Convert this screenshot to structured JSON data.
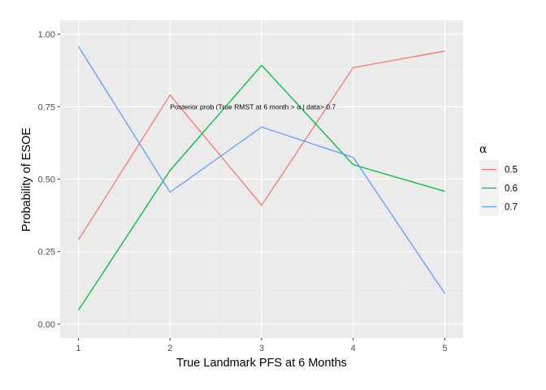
{
  "chart_data": {
    "type": "line",
    "title": "",
    "xlabel": "True Landmark PFS at 6 Months",
    "ylabel": "Probability of ESOE",
    "x": [
      1,
      2,
      3,
      4,
      5
    ],
    "xlim": [
      0.8,
      5.2
    ],
    "ylim": [
      -0.048,
      1.048
    ],
    "x_ticks": [
      1,
      2,
      3,
      4,
      5
    ],
    "x_tick_labels": [
      "1",
      "2",
      "3",
      "4",
      "5"
    ],
    "y_ticks": [
      0,
      0.25,
      0.5,
      0.75,
      1
    ],
    "y_tick_labels": [
      "0.00",
      "0.25",
      "0.50",
      "0.75",
      "1.00"
    ],
    "grid": true,
    "legend_title": "α",
    "legend_position": "right",
    "series": [
      {
        "name": "0.5",
        "color": "#F8766D",
        "values": [
          0.29,
          0.79,
          0.41,
          0.885,
          0.942
        ]
      },
      {
        "name": "0.6",
        "color": "#00BA38",
        "values": [
          0.048,
          0.53,
          0.893,
          0.55,
          0.458
        ]
      },
      {
        "name": "0.7",
        "color": "#619CFF",
        "values": [
          0.958,
          0.455,
          0.68,
          0.575,
          0.105
        ]
      }
    ],
    "annotation": {
      "text": "Posterior prob (True RMST at 6 month > α | data> 0.7",
      "x": 2.0,
      "y": 0.75
    }
  }
}
